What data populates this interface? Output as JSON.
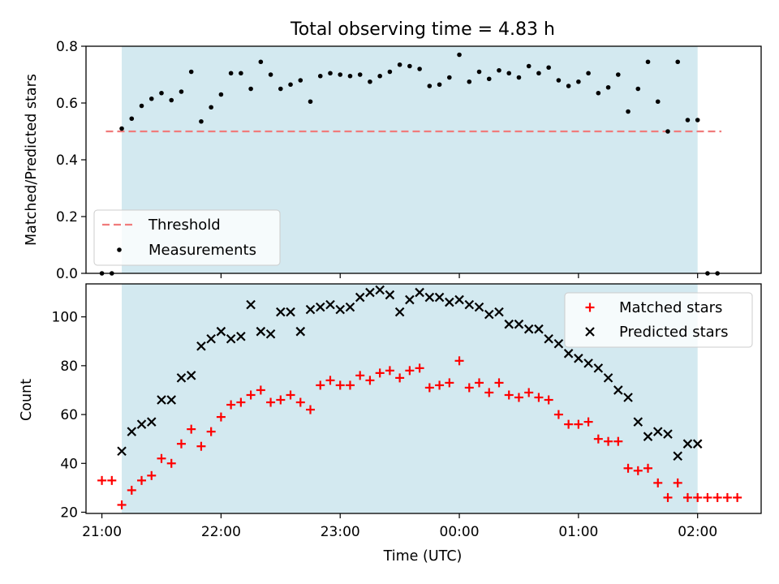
{
  "chart_data": [
    {
      "type": "scatter",
      "title": "Total observing time = 4.83 h",
      "ylabel": "Matched/Predicted stars",
      "xlabel": "",
      "ylim": [
        0,
        0.8
      ],
      "yticks": [
        "0.0",
        "0.2",
        "0.4",
        "0.6",
        "0.8"
      ],
      "x_range_minutes": [
        -8,
        332
      ],
      "observing_window_minutes": [
        10,
        300
      ],
      "observing_window_color": "#d3e9f0",
      "threshold": {
        "name": "Threshold",
        "y": 0.5,
        "x_range_minutes": [
          2,
          312
        ],
        "color": "#f07b7b"
      },
      "legend": {
        "placement": "lower-left",
        "entries": [
          "Threshold",
          "Measurements"
        ]
      },
      "series": [
        {
          "name": "Measurements",
          "color": "#000000",
          "x": [
            0,
            5,
            10,
            15,
            20,
            25,
            30,
            35,
            40,
            45,
            50,
            55,
            60,
            65,
            70,
            75,
            80,
            85,
            90,
            95,
            100,
            105,
            110,
            115,
            120,
            125,
            130,
            135,
            140,
            145,
            150,
            155,
            160,
            165,
            170,
            175,
            180,
            185,
            190,
            195,
            200,
            205,
            210,
            215,
            220,
            225,
            230,
            235,
            240,
            245,
            250,
            255,
            260,
            265,
            270,
            275,
            280,
            285,
            290,
            295,
            300,
            305,
            310
          ],
          "y": [
            0,
            0,
            0.51,
            0.545,
            0.59,
            0.615,
            0.635,
            0.61,
            0.64,
            0.71,
            0.535,
            0.585,
            0.63,
            0.705,
            0.705,
            0.65,
            0.745,
            0.7,
            0.65,
            0.665,
            0.68,
            0.605,
            0.695,
            0.705,
            0.7,
            0.695,
            0.7,
            0.675,
            0.695,
            0.71,
            0.735,
            0.73,
            0.72,
            0.66,
            0.665,
            0.69,
            0.77,
            0.675,
            0.71,
            0.685,
            0.715,
            0.705,
            0.69,
            0.73,
            0.705,
            0.725,
            0.68,
            0.66,
            0.675,
            0.705,
            0.635,
            0.655,
            0.7,
            0.57,
            0.65,
            0.745,
            0.605,
            0.5,
            0.745,
            0.54,
            0.54,
            0,
            0
          ]
        }
      ]
    },
    {
      "type": "scatter",
      "title": "",
      "xlabel": "Time (UTC)",
      "ylabel": "Count",
      "ylim": [
        19.5,
        113.5
      ],
      "yticks": [
        "20",
        "40",
        "60",
        "80",
        "100"
      ],
      "x_range_minutes": [
        -8,
        332
      ],
      "xticks": [
        "21:00",
        "22:00",
        "23:00",
        "00:00",
        "01:00",
        "02:00"
      ],
      "observing_window_minutes": [
        10,
        300
      ],
      "observing_window_color": "#d3e9f0",
      "legend": {
        "placement": "top-right",
        "entries": [
          "Matched stars",
          "Predicted stars"
        ]
      },
      "series": [
        {
          "name": "Matched stars",
          "marker": "plus",
          "color": "#ff0000",
          "x": [
            0,
            5,
            10,
            15,
            20,
            25,
            30,
            35,
            40,
            45,
            50,
            55,
            60,
            65,
            70,
            75,
            80,
            85,
            90,
            95,
            100,
            105,
            110,
            115,
            120,
            125,
            130,
            135,
            140,
            145,
            150,
            155,
            160,
            165,
            170,
            175,
            180,
            185,
            190,
            195,
            200,
            205,
            210,
            215,
            220,
            225,
            230,
            235,
            240,
            245,
            250,
            255,
            260,
            265,
            270,
            275,
            280,
            285,
            290,
            295,
            300,
            305,
            310,
            315,
            320
          ],
          "y": [
            33,
            33,
            23,
            29,
            33,
            35,
            42,
            40,
            48,
            54,
            47,
            53,
            59,
            64,
            65,
            68,
            70,
            65,
            66,
            68,
            65,
            62,
            72,
            74,
            72,
            72,
            76,
            74,
            77,
            78,
            75,
            78,
            79,
            71,
            72,
            73,
            82,
            71,
            73,
            69,
            73,
            68,
            67,
            69,
            67,
            66,
            60,
            56,
            56,
            57,
            50,
            49,
            49,
            38,
            37,
            38,
            32,
            26,
            32,
            26,
            26,
            26,
            26,
            26,
            26
          ]
        },
        {
          "name": "Predicted stars",
          "marker": "x",
          "color": "#000000",
          "x": [
            10,
            15,
            20,
            25,
            30,
            35,
            40,
            45,
            50,
            55,
            60,
            65,
            70,
            75,
            80,
            85,
            90,
            95,
            100,
            105,
            110,
            115,
            120,
            125,
            130,
            135,
            140,
            145,
            150,
            155,
            160,
            165,
            170,
            175,
            180,
            185,
            190,
            195,
            200,
            205,
            210,
            215,
            220,
            225,
            230,
            235,
            240,
            245,
            250,
            255,
            260,
            265,
            270,
            275,
            280,
            285,
            290,
            295,
            300
          ],
          "y": [
            45,
            53,
            56,
            57,
            66,
            66,
            75,
            76,
            88,
            91,
            94,
            91,
            92,
            105,
            94,
            93,
            102,
            102,
            94,
            103,
            104,
            105,
            103,
            104,
            108,
            110,
            111,
            109,
            102,
            107,
            110,
            108,
            108,
            106,
            107,
            105,
            104,
            101,
            102,
            97,
            97,
            95,
            95,
            91,
            89,
            85,
            83,
            81,
            79,
            75,
            70,
            67,
            57,
            51,
            53,
            52,
            43,
            48,
            48
          ]
        }
      ]
    }
  ]
}
